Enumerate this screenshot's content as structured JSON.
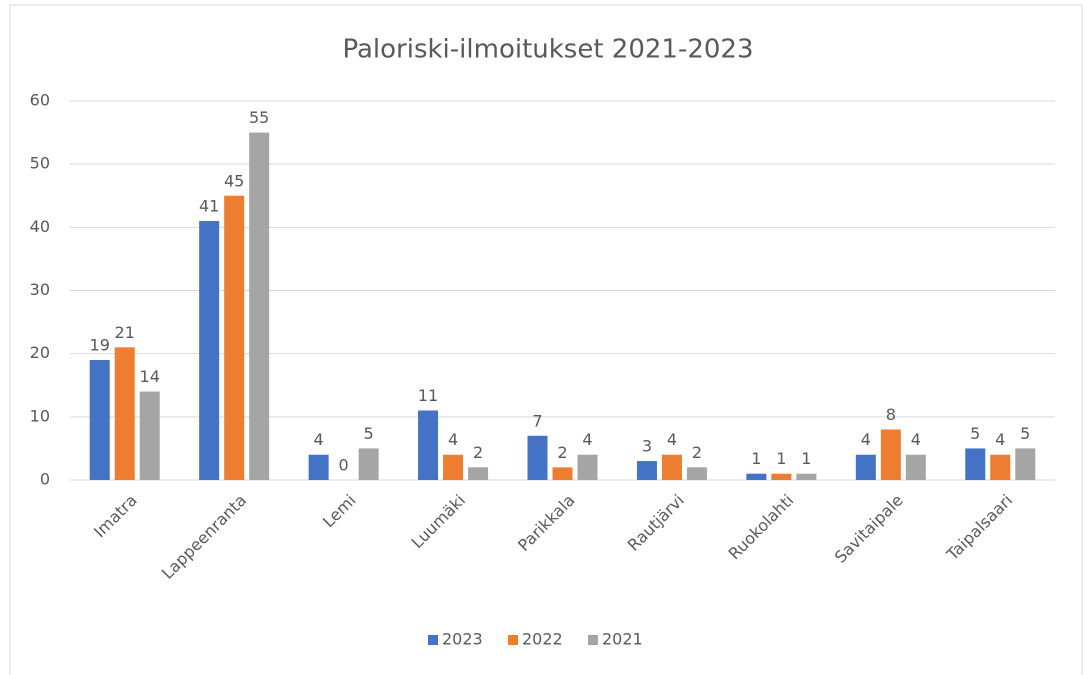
{
  "chart_data": {
    "type": "bar",
    "title": "Paloriski-ilmoitukset 2021-2023",
    "categories": [
      "Imatra",
      "Lappeenranta",
      "Lemi",
      "Luumäki",
      "Parikkala",
      "Rautjärvi",
      "Ruokolahti",
      "Savitaipale",
      "Taipalsaari"
    ],
    "series": [
      {
        "name": "2023",
        "color": "#4472c4",
        "values": [
          19,
          41,
          4,
          11,
          7,
          3,
          1,
          4,
          5
        ]
      },
      {
        "name": "2022",
        "color": "#ed7d31",
        "values": [
          21,
          45,
          0,
          4,
          2,
          4,
          1,
          8,
          4
        ]
      },
      {
        "name": "2021",
        "color": "#a5a5a5",
        "values": [
          14,
          55,
          5,
          2,
          4,
          2,
          1,
          4,
          5
        ]
      }
    ],
    "ylim": [
      0,
      60
    ],
    "yticks": [
      0,
      10,
      20,
      30,
      40,
      50,
      60
    ],
    "grid": true,
    "legend": "bottom"
  }
}
